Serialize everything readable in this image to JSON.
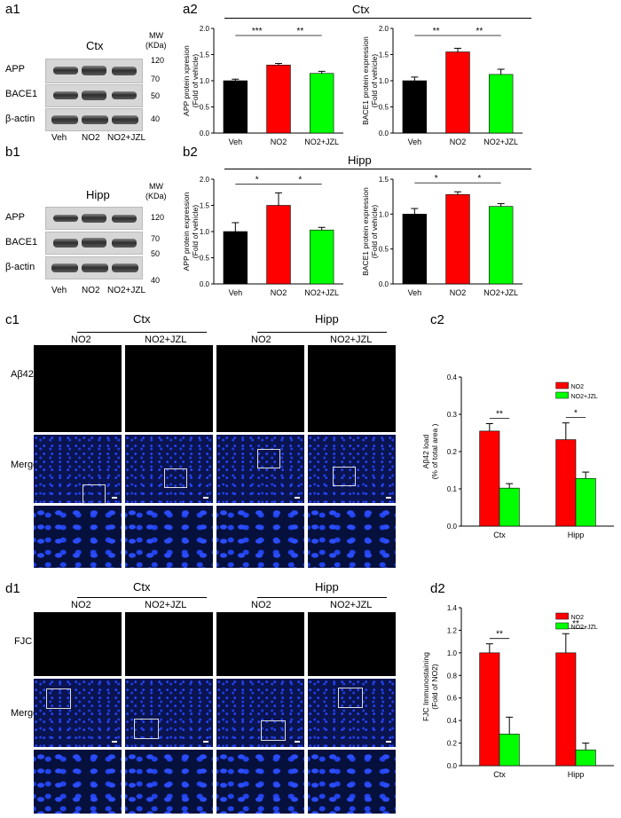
{
  "panels": {
    "a1": "a1",
    "a2": "a2",
    "b1": "b1",
    "b2": "b2",
    "c1": "c1",
    "c2": "c2",
    "d1": "d1",
    "d2": "d2"
  },
  "blots": {
    "top": {
      "region": "Ctx",
      "mw_header": "MW",
      "mw_unit": "(KDa)",
      "rows": [
        "APP",
        "BACE1",
        "β-actin"
      ],
      "markers": [
        "120",
        "70",
        "50",
        "40"
      ],
      "lanes": [
        "Veh",
        "NO2",
        "NO2+JZL"
      ]
    },
    "bottom": {
      "region": "Hipp",
      "mw_header": "MW",
      "mw_unit": "(KDa)",
      "rows": [
        "APP",
        "BACE1",
        "β-actin"
      ],
      "markers": [
        "120",
        "70",
        "50",
        "40"
      ],
      "lanes": [
        "Veh",
        "NO2",
        "NO2+JZL"
      ]
    }
  },
  "region_headers": {
    "a2": "Ctx",
    "b2": "Hipp"
  },
  "micro": {
    "c1": {
      "regions": [
        "Ctx",
        "Hipp"
      ],
      "conditions": [
        "NO2",
        "NO2+JZL",
        "NO2",
        "NO2+JZL"
      ],
      "rows": [
        "Aβ42",
        "Merge"
      ]
    },
    "d1": {
      "regions": [
        "Ctx",
        "Hipp"
      ],
      "conditions": [
        "NO2",
        "NO2+JZL",
        "NO2",
        "NO2+JZL"
      ],
      "rows": [
        "FJC",
        "Merge"
      ]
    }
  },
  "colors": {
    "veh": "#000000",
    "no2": "#ff0000",
    "jzl": "#00ff00"
  },
  "chart_data": [
    {
      "id": "a2-app",
      "type": "bar",
      "categories": [
        "Veh",
        "NO2",
        "NO2+JZL"
      ],
      "values": [
        1.0,
        1.3,
        1.14
      ],
      "errors": [
        0.03,
        0.03,
        0.04
      ],
      "ylabel": "APP protein xpresion",
      "ylabel2": "(Fold of vehicle)",
      "ylim": [
        0,
        2.0
      ],
      "yticks": [
        "0.0",
        "0.5",
        "1.0",
        "1.5",
        "2.0"
      ],
      "sig": [
        {
          "from": 0,
          "to": 1,
          "label": "***"
        },
        {
          "from": 1,
          "to": 2,
          "label": "**"
        }
      ]
    },
    {
      "id": "a2-bace",
      "type": "bar",
      "categories": [
        "Veh",
        "NO2",
        "NO2+JZL"
      ],
      "values": [
        1.0,
        1.55,
        1.12
      ],
      "errors": [
        0.07,
        0.07,
        0.1
      ],
      "ylabel": "BACE1 protein expression",
      "ylabel2": "(Fold of vehicle)",
      "ylim": [
        0,
        2.0
      ],
      "yticks": [
        "0.0",
        "0.5",
        "1.0",
        "1.5",
        "2.0"
      ],
      "sig": [
        {
          "from": 0,
          "to": 1,
          "label": "**"
        },
        {
          "from": 1,
          "to": 2,
          "label": "**"
        }
      ]
    },
    {
      "id": "b2-app",
      "type": "bar",
      "categories": [
        "Veh",
        "NO2",
        "NO2+JZL"
      ],
      "values": [
        1.0,
        1.5,
        1.03
      ],
      "errors": [
        0.17,
        0.24,
        0.05
      ],
      "ylabel": "APP protein expression",
      "ylabel2": "(Fold of vehicle)",
      "ylim": [
        0,
        2.0
      ],
      "yticks": [
        "0.0",
        "0.5",
        "1.0",
        "1.5",
        "2.0"
      ],
      "sig": [
        {
          "from": 0,
          "to": 1,
          "label": "*"
        },
        {
          "from": 1,
          "to": 2,
          "label": "*"
        }
      ]
    },
    {
      "id": "b2-bace",
      "type": "bar",
      "categories": [
        "Veh",
        "NO2",
        "NO2+JZL"
      ],
      "values": [
        1.0,
        1.28,
        1.11
      ],
      "errors": [
        0.08,
        0.04,
        0.04
      ],
      "ylabel": "BACE1 protein expression",
      "ylabel2": "(Fold of vehicle)",
      "ylim": [
        0,
        1.5
      ],
      "yticks": [
        "0.0",
        "0.5",
        "1.0",
        "1.5"
      ],
      "sig": [
        {
          "from": 0,
          "to": 1,
          "label": "*"
        },
        {
          "from": 1,
          "to": 2,
          "label": "*"
        }
      ]
    },
    {
      "id": "c2",
      "type": "bar",
      "categories": [
        "Ctx",
        "Hipp"
      ],
      "series": [
        {
          "name": "NO2",
          "values": [
            0.255,
            0.232
          ],
          "errors": [
            0.02,
            0.045
          ]
        },
        {
          "name": "NO2+JZL",
          "values": [
            0.102,
            0.128
          ],
          "errors": [
            0.012,
            0.017
          ]
        }
      ],
      "ylabel": "Aβ42 load",
      "ylabel2": "(% of total area )",
      "ylim": [
        0,
        0.4
      ],
      "yticks": [
        "0.0",
        "0.1",
        "0.2",
        "0.3",
        "0.4"
      ],
      "legend": "top-right",
      "sig": [
        "**",
        "*"
      ]
    },
    {
      "id": "d2",
      "type": "bar",
      "categories": [
        "Ctx",
        "Hipp"
      ],
      "series": [
        {
          "name": "NO2",
          "values": [
            1.0,
            1.0
          ],
          "errors": [
            0.08,
            0.17
          ]
        },
        {
          "name": "NO2+JZL",
          "values": [
            0.28,
            0.14
          ],
          "errors": [
            0.15,
            0.06
          ]
        }
      ],
      "ylabel": "FJC Immunostaining",
      "ylabel2": "(Fold of NO2)",
      "ylim": [
        0,
        1.4
      ],
      "yticks": [
        "0.0",
        "0.2",
        "0.4",
        "0.6",
        "0.8",
        "1.0",
        "1.2",
        "1.4"
      ],
      "legend": "top-right",
      "sig": [
        "**",
        "**"
      ]
    }
  ]
}
